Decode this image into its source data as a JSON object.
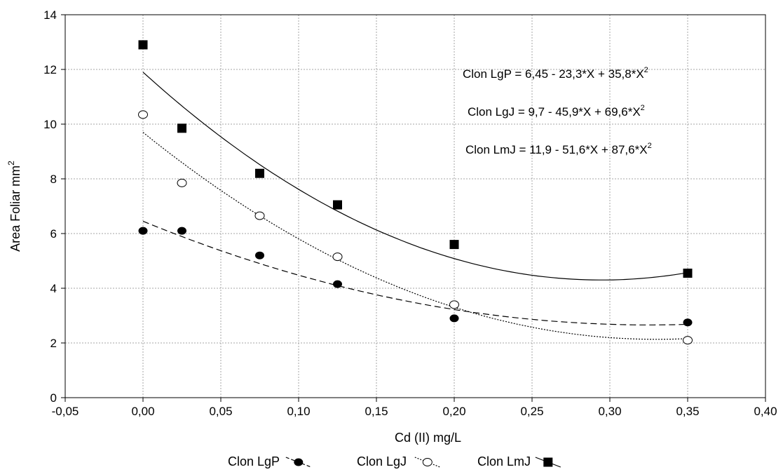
{
  "chart_data": {
    "type": "scatter",
    "xlabel": "Cd (II) mg/L",
    "ylabel": "Area Foliar mm",
    "ylabel_sup": "2",
    "xlim": [
      -0.05,
      0.4
    ],
    "ylim": [
      0,
      14
    ],
    "x_ticks": [
      "-0,05",
      "0,00",
      "0,05",
      "0,10",
      "0,15",
      "0,20",
      "0,25",
      "0,30",
      "0,35",
      "0,40"
    ],
    "x_tick_values": [
      -0.05,
      0.0,
      0.05,
      0.1,
      0.15,
      0.2,
      0.25,
      0.3,
      0.35,
      0.4
    ],
    "y_ticks": [
      "0",
      "2",
      "4",
      "6",
      "8",
      "10",
      "12",
      "14"
    ],
    "y_tick_values": [
      0,
      2,
      4,
      6,
      8,
      10,
      12,
      14
    ],
    "grid": true,
    "legend_position": "bottom",
    "series": [
      {
        "name": "Clon LgP",
        "marker": "filled-circle",
        "line": "dashed",
        "x": [
          0.0,
          0.025,
          0.075,
          0.125,
          0.2,
          0.35
        ],
        "y": [
          6.1,
          6.1,
          5.2,
          4.15,
          2.9,
          2.75
        ],
        "fit": {
          "a": 6.45,
          "b": -23.3,
          "c": 35.8
        },
        "equation": "Clon LgP = 6,45 - 23,3*X + 35,8*X"
      },
      {
        "name": "Clon LgJ",
        "marker": "open-circle",
        "line": "dotted",
        "x": [
          0.0,
          0.025,
          0.075,
          0.125,
          0.2,
          0.35
        ],
        "y": [
          10.35,
          7.85,
          6.65,
          5.15,
          3.4,
          2.1
        ],
        "fit": {
          "a": 9.7,
          "b": -45.9,
          "c": 69.6
        },
        "equation": "Clon LgJ = 9,7 - 45,9*X + 69,6*X"
      },
      {
        "name": "Clon LmJ",
        "marker": "filled-square",
        "line": "solid",
        "x": [
          0.0,
          0.025,
          0.075,
          0.125,
          0.2,
          0.35
        ],
        "y": [
          12.9,
          9.85,
          8.2,
          7.05,
          5.6,
          4.55
        ],
        "fit": {
          "a": 11.9,
          "b": -51.6,
          "c": 87.6
        },
        "equation": "Clon LmJ = 11,9 - 51,6*X + 87,6*X"
      }
    ],
    "equation_superscript": "2"
  }
}
